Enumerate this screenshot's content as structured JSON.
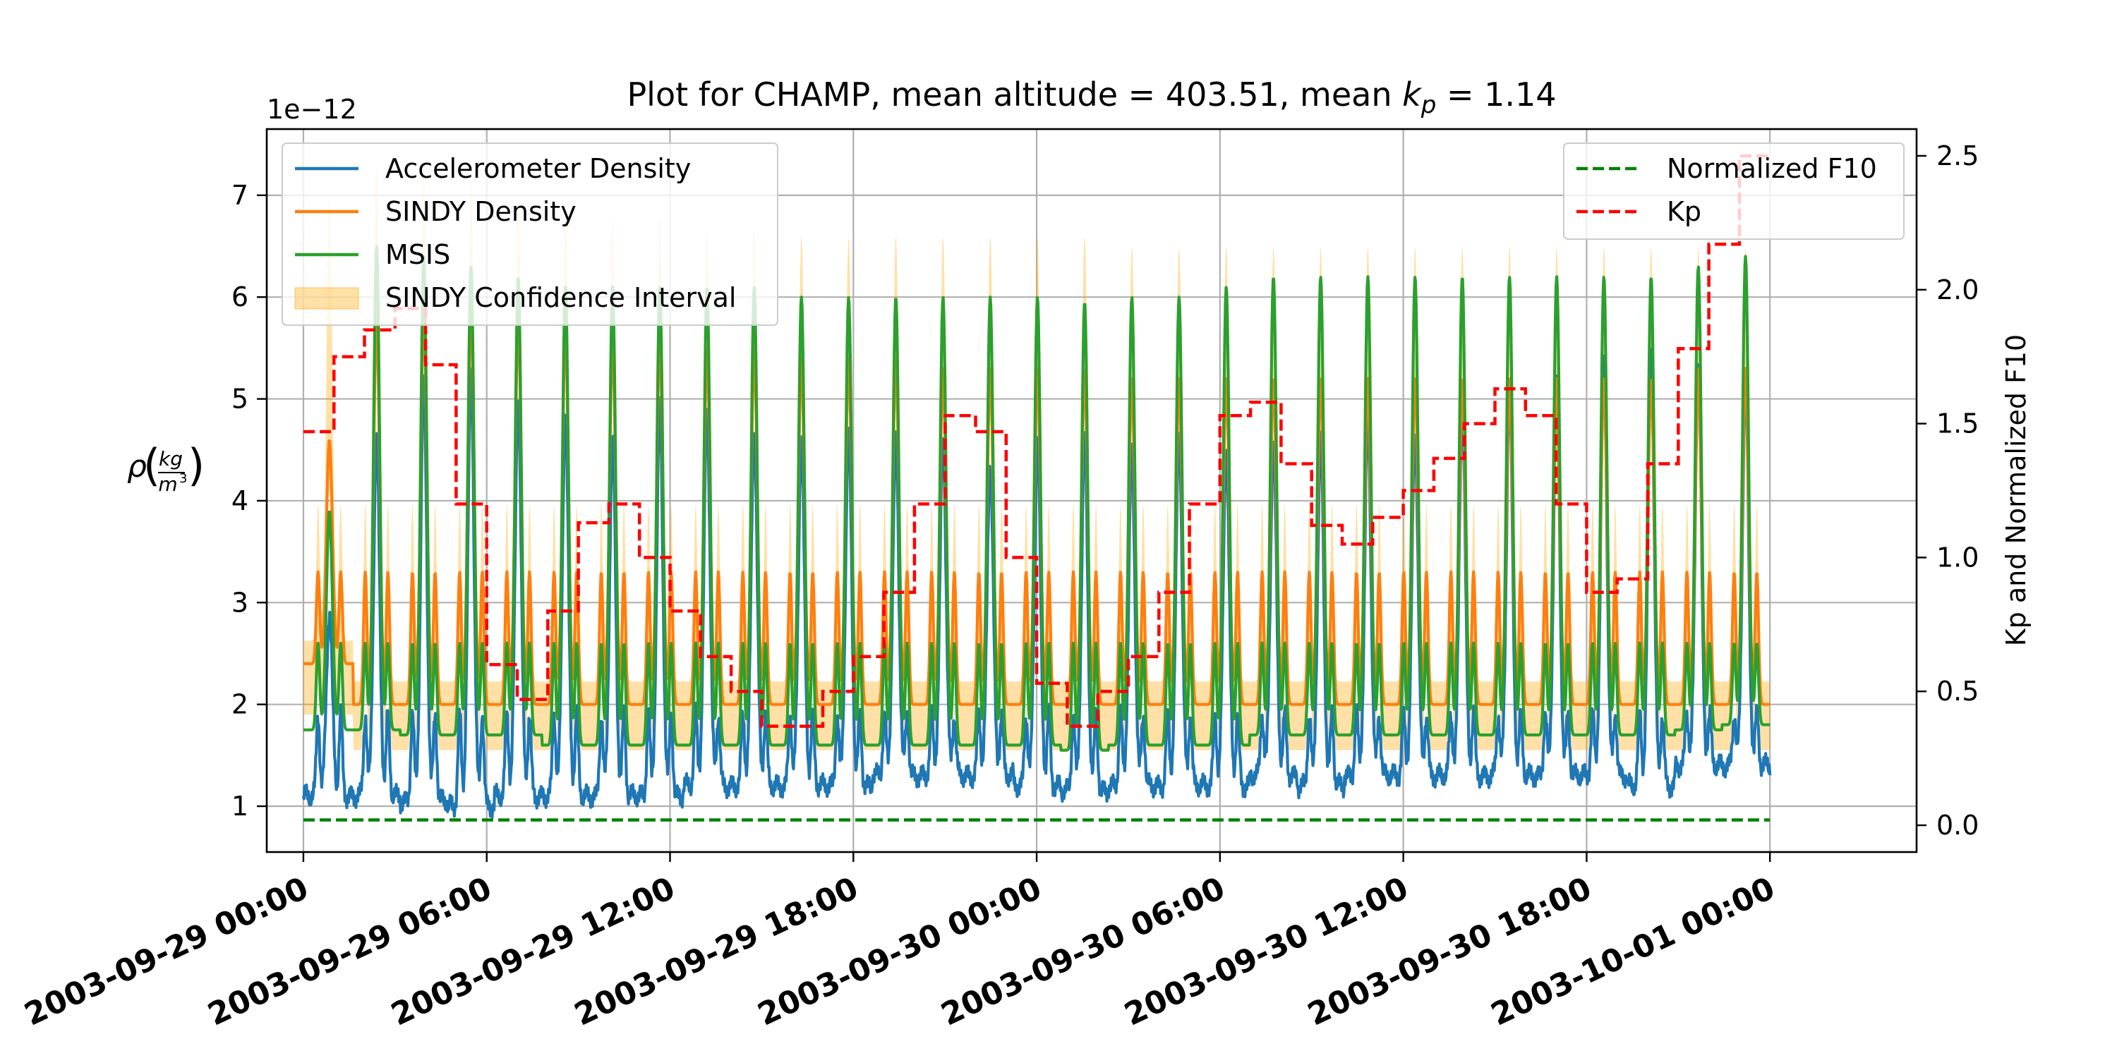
{
  "chart_data": {
    "type": "line",
    "title": "Plot for CHAMP, mean altitude = 403.51, mean k_p = 1.14",
    "title_parts": {
      "prefix": "Plot for CHAMP, mean altitude = 403.51, mean ",
      "var_main": "k",
      "var_sub": "p",
      "suffix": " = 1.14"
    },
    "ylabel_left": {
      "symbol": "ρ",
      "num": "kg",
      "den_base": "m",
      "den_exp": "3"
    },
    "ylabel_right": "Kp and Normalized F10",
    "y_offset_label": "1e−12",
    "xlim_hours": [
      -1.2,
      52.8
    ],
    "x_ticks": [
      {
        "hours": 0,
        "label": "2003-09-29 00:00"
      },
      {
        "hours": 6,
        "label": "2003-09-29 06:00"
      },
      {
        "hours": 12,
        "label": "2003-09-29 12:00"
      },
      {
        "hours": 18,
        "label": "2003-09-29 18:00"
      },
      {
        "hours": 24,
        "label": "2003-09-30 00:00"
      },
      {
        "hours": 30,
        "label": "2003-09-30 06:00"
      },
      {
        "hours": 36,
        "label": "2003-09-30 12:00"
      },
      {
        "hours": 42,
        "label": "2003-09-30 18:00"
      },
      {
        "hours": 48,
        "label": "2003-10-01 00:00"
      }
    ],
    "y_left": {
      "lim": [
        0.55,
        7.65
      ],
      "ticks": [
        1,
        2,
        3,
        4,
        5,
        6,
        7
      ],
      "tick_labels": [
        "1",
        "2",
        "3",
        "4",
        "5",
        "6",
        "7"
      ]
    },
    "y_right": {
      "lim": [
        -0.1,
        2.6
      ],
      "ticks": [
        0.0,
        0.5,
        1.0,
        1.5,
        2.0,
        2.5
      ],
      "tick_labels": [
        "0.0",
        "0.5",
        "1.0",
        "1.5",
        "2.0",
        "2.5"
      ]
    },
    "grid": true,
    "orbit": {
      "period_hours": 1.545,
      "first_peak_hours": 0.85,
      "count": 31
    },
    "series": [
      {
        "name": "Accelerometer Density",
        "color": "#1f77b4",
        "axis": "left",
        "style": "solid",
        "peaks_e12": [
          2.9,
          4.6,
          5.2,
          5.3,
          5.0,
          4.9,
          4.6,
          4.9,
          4.9,
          4.7,
          4.6,
          4.7,
          4.6,
          4.6,
          4.4,
          4.6,
          4.6,
          4.5,
          4.7,
          4.5,
          4.6,
          4.6,
          4.8,
          4.7,
          5.0,
          5.1,
          5.2,
          5.4,
          5.5,
          5.4,
          5.2
        ],
        "troughs_e12": [
          1.1,
          1.1,
          1.05,
          1.0,
          1.1,
          1.1,
          1.1,
          1.1,
          1.2,
          1.2,
          1.2,
          1.2,
          1.3,
          1.3,
          1.3,
          1.2,
          1.15,
          1.2,
          1.2,
          1.2,
          1.3,
          1.2,
          1.3,
          1.3,
          1.3,
          1.3,
          1.3,
          1.3,
          1.2,
          1.4,
          1.4
        ],
        "secondary_hump_e12": 1.9
      },
      {
        "name": "SINDY Density",
        "color": "#ff7f0e",
        "axis": "left",
        "style": "solid",
        "peaks_e12": [
          4.6,
          5.8,
          5.9,
          5.9,
          5.8,
          5.7,
          5.6,
          5.6,
          5.5,
          5.5,
          5.4,
          5.4,
          5.4,
          5.3,
          5.3,
          5.3,
          5.3,
          5.2,
          5.2,
          5.2,
          5.2,
          5.2,
          5.2,
          5.2,
          5.2,
          5.2,
          5.2,
          5.2,
          5.2,
          5.3,
          5.3
        ],
        "troughs_e12": [
          2.4,
          2.0,
          2.0,
          2.0,
          2.0,
          2.0,
          2.0,
          2.0,
          2.0,
          2.0,
          2.0,
          2.0,
          2.0,
          2.0,
          2.0,
          2.0,
          2.0,
          2.0,
          2.0,
          2.0,
          2.0,
          2.0,
          2.0,
          2.0,
          2.0,
          2.0,
          2.0,
          2.0,
          2.0,
          2.0,
          2.0
        ],
        "secondary_hump_e12": 3.3
      },
      {
        "name": "MSIS",
        "color": "#2ca02c",
        "axis": "left",
        "style": "solid",
        "peaks_e12": [
          3.9,
          6.5,
          6.4,
          6.3,
          6.2,
          6.1,
          6.1,
          6.1,
          6.1,
          6.1,
          6.0,
          6.0,
          6.0,
          6.0,
          6.0,
          6.0,
          5.95,
          6.0,
          6.0,
          6.1,
          6.2,
          6.2,
          6.2,
          6.2,
          6.2,
          6.2,
          6.2,
          6.2,
          6.2,
          6.3,
          6.4
        ],
        "troughs_e12": [
          1.75,
          1.75,
          1.7,
          1.7,
          1.7,
          1.6,
          1.6,
          1.6,
          1.6,
          1.6,
          1.6,
          1.6,
          1.6,
          1.6,
          1.6,
          1.6,
          1.55,
          1.6,
          1.6,
          1.6,
          1.7,
          1.7,
          1.7,
          1.7,
          1.7,
          1.7,
          1.7,
          1.7,
          1.7,
          1.75,
          1.8
        ],
        "secondary_hump_e12": 2.6
      },
      {
        "name": "SINDY Confidence Interval",
        "color": "#ffa500",
        "axis": "left",
        "style": "band",
        "opacity": 0.35,
        "upper_peaks_e12": [
          7.0,
          7.3,
          7.2,
          7.1,
          7.0,
          6.9,
          6.8,
          6.8,
          6.7,
          6.7,
          6.6,
          6.6,
          6.6,
          6.6,
          6.6,
          6.6,
          6.6,
          6.5,
          6.5,
          6.5,
          6.5,
          6.5,
          6.5,
          6.5,
          6.5,
          6.5,
          6.5,
          6.5,
          6.5,
          6.5,
          6.5
        ],
        "lower_e12": 1.55
      },
      {
        "name": "Normalized F10",
        "color": "#008000",
        "axis": "right",
        "style": "dashed",
        "x_hours": [
          0,
          48
        ],
        "y": [
          0.02,
          0.02
        ]
      },
      {
        "name": "Kp",
        "color": "#ff0000",
        "axis": "right",
        "style": "dashed-step",
        "step_hours": 1,
        "values": [
          1.47,
          1.75,
          1.85,
          1.93,
          1.72,
          1.2,
          0.6,
          0.47,
          0.8,
          1.13,
          1.2,
          1.0,
          0.8,
          0.63,
          0.5,
          0.37,
          0.37,
          0.5,
          0.63,
          0.87,
          1.2,
          1.53,
          1.47,
          1.0,
          0.53,
          0.37,
          0.5,
          0.63,
          0.87,
          1.2,
          1.53,
          1.58,
          1.35,
          1.12,
          1.05,
          1.15,
          1.25,
          1.37,
          1.5,
          1.63,
          1.53,
          1.2,
          0.87,
          0.92,
          1.35,
          1.78,
          2.17,
          2.5,
          2.5
        ]
      }
    ],
    "legend_left": {
      "placement": "upper-left",
      "entries": [
        "Accelerometer Density",
        "SINDY Density",
        "MSIS",
        "SINDY Confidence Interval"
      ]
    },
    "legend_right": {
      "placement": "upper-right",
      "entries": [
        "Normalized F10",
        "Kp"
      ]
    }
  }
}
